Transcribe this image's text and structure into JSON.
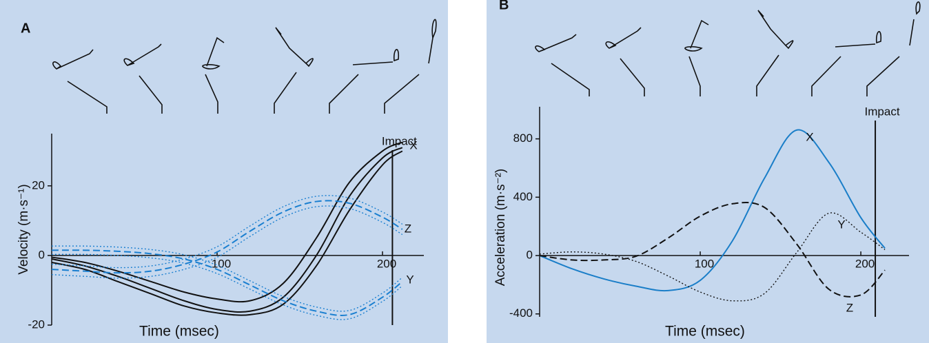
{
  "chart_data": [
    {
      "type": "line",
      "panel": "A",
      "x_label": "Time (msec)",
      "y_label": "Velocity (m·s⁻¹)",
      "x": [
        0,
        20,
        40,
        60,
        80,
        100,
        120,
        140,
        160,
        180,
        200,
        212
      ],
      "xlim": [
        0,
        225
      ],
      "xticks": [
        100,
        200
      ],
      "ylim": [
        -20,
        35
      ],
      "yticks": [
        -20,
        0,
        20
      ],
      "annotations": [
        {
          "text": "Impact",
          "x": 206
        }
      ],
      "series": [
        {
          "color": "#111111",
          "style": "solid",
          "values": [
            -0.5,
            -2,
            -4.5,
            -7.5,
            -10.5,
            -12.5,
            -13,
            -8,
            5,
            21,
            30,
            32.5
          ]
        },
        {
          "name": "X",
          "color": "#111111",
          "style": "solid",
          "values": [
            -1,
            -3,
            -6,
            -9.5,
            -13,
            -15.5,
            -16,
            -12,
            0,
            17,
            28,
            31
          ]
        },
        {
          "color": "#111111",
          "style": "solid",
          "values": [
            -2,
            -4,
            -7.5,
            -11,
            -14.5,
            -16.5,
            -17,
            -14,
            -3,
            13,
            26,
            30
          ]
        },
        {
          "color": "#1a7fd0",
          "style": "dotted",
          "values": [
            -2.5,
            -3,
            -3.5,
            -3,
            -1,
            2.5,
            8.5,
            14,
            17,
            16.5,
            12.5,
            9
          ]
        },
        {
          "name": "Z",
          "color": "#1a7fd0",
          "style": "dashed",
          "values": [
            -4,
            -4.5,
            -5,
            -4.5,
            -2.5,
            1,
            7,
            12.5,
            15.5,
            15,
            11,
            7.5
          ]
        },
        {
          "color": "#1a7fd0",
          "style": "dotted",
          "values": [
            -5.5,
            -6,
            -6.5,
            -6,
            -4,
            -0.5,
            5.5,
            11,
            14,
            13.5,
            9.5,
            6
          ]
        },
        {
          "color": "#1a7fd0",
          "style": "dotted",
          "values": [
            2.7,
            2.7,
            2.4,
            1.7,
            0.2,
            -2.8,
            -7.3,
            -11.8,
            -14.8,
            -15.8,
            -10.8,
            -6.3
          ]
        },
        {
          "name": "Y",
          "color": "#1a7fd0",
          "style": "dashed",
          "values": [
            1.5,
            1.5,
            1.2,
            0.5,
            -1,
            -4,
            -8.5,
            -13,
            -16,
            -17,
            -12,
            -7.5
          ]
        },
        {
          "color": "#1a7fd0",
          "style": "dotted",
          "values": [
            0.3,
            0.3,
            0,
            -0.7,
            -2.2,
            -5.2,
            -9.7,
            -14.2,
            -17.2,
            -18.2,
            -13.2,
            -8.7
          ]
        }
      ]
    },
    {
      "type": "line",
      "panel": "B",
      "x_label": "Time (msec)",
      "y_label": "Acceleration (m·s⁻²)",
      "x": [
        0,
        20,
        40,
        60,
        80,
        100,
        120,
        140,
        160,
        180,
        200,
        215
      ],
      "xlim": [
        0,
        230
      ],
      "xticks": [
        100,
        200
      ],
      "ylim": [
        -420,
        1020
      ],
      "yticks": [
        -400,
        0,
        400,
        800
      ],
      "annotations": [
        {
          "text": "Impact",
          "x": 209
        }
      ],
      "series": [
        {
          "name": "X",
          "color": "#1a7ec8",
          "style": "solid",
          "values": [
            0,
            -90,
            -160,
            -210,
            -240,
            -170,
            100,
            530,
            860,
            640,
            260,
            50
          ]
        },
        {
          "name": "Y",
          "color": "#111111",
          "style": "dotted",
          "values": [
            10,
            25,
            10,
            -40,
            -140,
            -250,
            -310,
            -260,
            20,
            290,
            160,
            40
          ]
        },
        {
          "name": "Z",
          "color": "#111111",
          "style": "dashed",
          "values": [
            0,
            -30,
            -30,
            -5,
            120,
            270,
            355,
            330,
            80,
            -230,
            -270,
            -100
          ]
        }
      ]
    }
  ]
}
